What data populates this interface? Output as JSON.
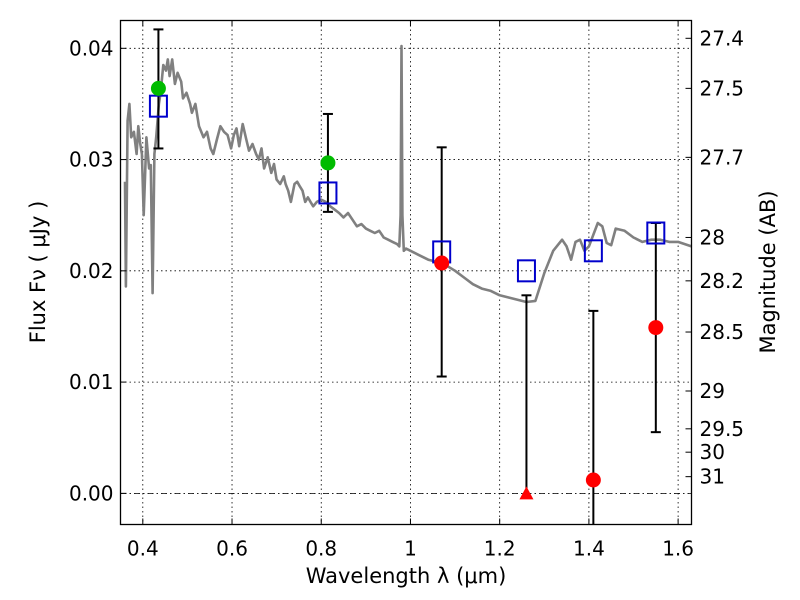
{
  "chart_data": {
    "type": "scatter",
    "xlabel": "Wavelength  λ (μm)",
    "ylabel": "Flux  Fν ( μJy )",
    "y2label": "Magnitude (AB)",
    "xlim": [
      0.35,
      1.63
    ],
    "ylim": [
      -0.0028,
      0.0425
    ],
    "grid": true,
    "x_ticks": [
      0.4,
      0.6,
      0.8,
      1.0,
      1.2,
      1.4,
      1.6
    ],
    "x_tick_labels": [
      "0.4",
      "0.6",
      "0.8",
      "1",
      "1.2",
      "1.4",
      "1.6"
    ],
    "y_ticks": [
      0.0,
      0.01,
      0.02,
      0.03,
      0.04
    ],
    "y_tick_labels": [
      "0.00",
      "0.01",
      "0.02",
      "0.03",
      "0.04"
    ],
    "mag_ticks": [
      {
        "label": "27.4",
        "flux": 0.0409
      },
      {
        "label": "27.5",
        "flux": 0.0364
      },
      {
        "label": "27.7",
        "flux": 0.0302
      },
      {
        "label": "28",
        "flux": 0.023
      },
      {
        "label": "28.2",
        "flux": 0.0191
      },
      {
        "label": "28.5",
        "flux": 0.0145
      },
      {
        "label": "29",
        "flux": 0.0092
      },
      {
        "label": "29.5",
        "flux": 0.0058
      },
      {
        "label": "30",
        "flux": 0.0037
      },
      {
        "label": "31",
        "flux": 0.0015
      }
    ],
    "colors": {
      "sed": "#808080",
      "detection": "#00bb00",
      "measured": "#ff0000",
      "model": "#0000cc",
      "errorbar": "#000000"
    },
    "sed_curve": [
      [
        0.36,
        0.028
      ],
      [
        0.362,
        0.0186
      ],
      [
        0.366,
        0.0335
      ],
      [
        0.37,
        0.035
      ],
      [
        0.374,
        0.032
      ],
      [
        0.38,
        0.0325
      ],
      [
        0.386,
        0.0305
      ],
      [
        0.39,
        0.033
      ],
      [
        0.394,
        0.0315
      ],
      [
        0.398,
        0.0305
      ],
      [
        0.402,
        0.025
      ],
      [
        0.408,
        0.032
      ],
      [
        0.414,
        0.0292
      ],
      [
        0.418,
        0.0295
      ],
      [
        0.422,
        0.018
      ],
      [
        0.426,
        0.0305
      ],
      [
        0.43,
        0.032
      ],
      [
        0.436,
        0.035
      ],
      [
        0.44,
        0.036
      ],
      [
        0.446,
        0.0385
      ],
      [
        0.452,
        0.038
      ],
      [
        0.456,
        0.039
      ],
      [
        0.46,
        0.0375
      ],
      [
        0.466,
        0.039
      ],
      [
        0.472,
        0.0368
      ],
      [
        0.478,
        0.0378
      ],
      [
        0.486,
        0.037
      ],
      [
        0.49,
        0.0355
      ],
      [
        0.498,
        0.036
      ],
      [
        0.506,
        0.035
      ],
      [
        0.51,
        0.0342
      ],
      [
        0.518,
        0.035
      ],
      [
        0.526,
        0.033
      ],
      [
        0.536,
        0.032
      ],
      [
        0.544,
        0.0325
      ],
      [
        0.552,
        0.031
      ],
      [
        0.558,
        0.0305
      ],
      [
        0.566,
        0.0318
      ],
      [
        0.574,
        0.033
      ],
      [
        0.582,
        0.0325
      ],
      [
        0.59,
        0.0322
      ],
      [
        0.598,
        0.031
      ],
      [
        0.604,
        0.0322
      ],
      [
        0.61,
        0.0328
      ],
      [
        0.616,
        0.0312
      ],
      [
        0.624,
        0.0332
      ],
      [
        0.632,
        0.0318
      ],
      [
        0.638,
        0.0308
      ],
      [
        0.646,
        0.0314
      ],
      [
        0.654,
        0.0305
      ],
      [
        0.66,
        0.03
      ],
      [
        0.666,
        0.031
      ],
      [
        0.672,
        0.0292
      ],
      [
        0.68,
        0.0302
      ],
      [
        0.688,
        0.0288
      ],
      [
        0.694,
        0.0296
      ],
      [
        0.7,
        0.0282
      ],
      [
        0.708,
        0.0278
      ],
      [
        0.716,
        0.0285
      ],
      [
        0.72,
        0.0278
      ],
      [
        0.726,
        0.0272
      ],
      [
        0.732,
        0.0262
      ],
      [
        0.74,
        0.0278
      ],
      [
        0.746,
        0.028
      ],
      [
        0.752,
        0.0276
      ],
      [
        0.758,
        0.0272
      ],
      [
        0.764,
        0.0262
      ],
      [
        0.77,
        0.0266
      ],
      [
        0.776,
        0.0262
      ],
      [
        0.782,
        0.0258
      ],
      [
        0.79,
        0.0262
      ],
      [
        0.8,
        0.0264
      ],
      [
        0.81,
        0.0262
      ],
      [
        0.82,
        0.0258
      ],
      [
        0.83,
        0.0255
      ],
      [
        0.84,
        0.0252
      ],
      [
        0.85,
        0.0248
      ],
      [
        0.86,
        0.0252
      ],
      [
        0.87,
        0.0246
      ],
      [
        0.88,
        0.024
      ],
      [
        0.89,
        0.0242
      ],
      [
        0.9,
        0.0238
      ],
      [
        0.91,
        0.0236
      ],
      [
        0.92,
        0.0234
      ],
      [
        0.93,
        0.0236
      ],
      [
        0.94,
        0.023
      ],
      [
        0.95,
        0.0228
      ],
      [
        0.96,
        0.0226
      ],
      [
        0.97,
        0.0224
      ],
      [
        0.975,
        0.0222
      ],
      [
        0.978,
        0.025
      ],
      [
        0.98,
        0.0402
      ],
      [
        0.982,
        0.025
      ],
      [
        0.985,
        0.0218
      ],
      [
        0.99,
        0.022
      ],
      [
        1.0,
        0.0218
      ],
      [
        1.02,
        0.0214
      ],
      [
        1.04,
        0.021
      ],
      [
        1.06,
        0.0208
      ],
      [
        1.08,
        0.0205
      ],
      [
        1.1,
        0.02
      ],
      [
        1.12,
        0.0194
      ],
      [
        1.14,
        0.0188
      ],
      [
        1.16,
        0.0184
      ],
      [
        1.18,
        0.0182
      ],
      [
        1.2,
        0.0178
      ],
      [
        1.22,
        0.0176
      ],
      [
        1.24,
        0.0174
      ],
      [
        1.26,
        0.0172
      ],
      [
        1.28,
        0.0173
      ],
      [
        1.3,
        0.0198
      ],
      [
        1.32,
        0.0218
      ],
      [
        1.34,
        0.0228
      ],
      [
        1.35,
        0.0222
      ],
      [
        1.36,
        0.021
      ],
      [
        1.37,
        0.0226
      ],
      [
        1.38,
        0.0228
      ],
      [
        1.39,
        0.0218
      ],
      [
        1.4,
        0.0222
      ],
      [
        1.42,
        0.0243
      ],
      [
        1.43,
        0.024
      ],
      [
        1.44,
        0.0225
      ],
      [
        1.45,
        0.0223
      ],
      [
        1.46,
        0.0238
      ],
      [
        1.48,
        0.0236
      ],
      [
        1.5,
        0.023
      ],
      [
        1.52,
        0.0226
      ],
      [
        1.54,
        0.0228
      ],
      [
        1.56,
        0.0228
      ],
      [
        1.58,
        0.0226
      ],
      [
        1.6,
        0.0226
      ],
      [
        1.63,
        0.0222
      ]
    ],
    "detections": [
      {
        "x": 0.435,
        "y": 0.0364,
        "yerr_low": 0.031,
        "yerr_high": 0.0417
      },
      {
        "x": 0.815,
        "y": 0.0297,
        "yerr_low": 0.0253,
        "yerr_high": 0.0341
      }
    ],
    "measurements": [
      {
        "x": 1.07,
        "y": 0.0207,
        "yerr_low": 0.0105,
        "yerr_high": 0.0311
      },
      {
        "x": 1.41,
        "y": 0.0012,
        "yerr_low": -0.0028,
        "yerr_high": 0.0164
      },
      {
        "x": 1.55,
        "y": 0.0149,
        "yerr_low": 0.0055,
        "yerr_high": 0.0243
      }
    ],
    "upper_limits": [
      {
        "x": 1.26,
        "y": 0.0,
        "yerr_high": 0.0178
      }
    ],
    "model_fluxes": [
      {
        "x": 0.435,
        "y": 0.0348
      },
      {
        "x": 0.815,
        "y": 0.027
      },
      {
        "x": 1.07,
        "y": 0.0217
      },
      {
        "x": 1.26,
        "y": 0.02
      },
      {
        "x": 1.41,
        "y": 0.0218
      },
      {
        "x": 1.55,
        "y": 0.0234
      }
    ]
  }
}
